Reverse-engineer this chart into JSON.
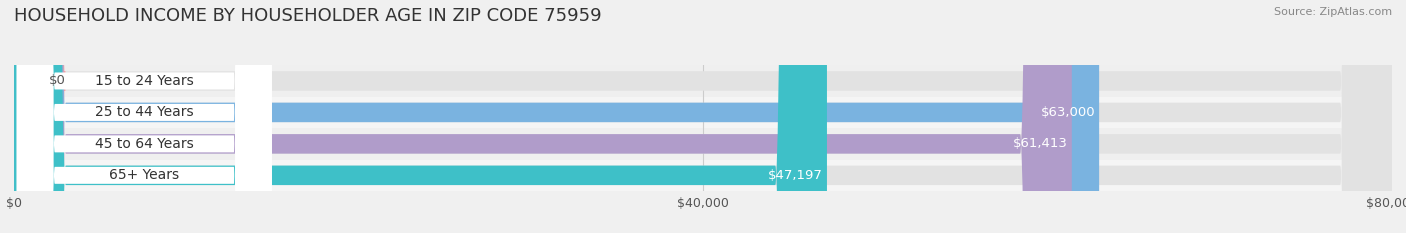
{
  "title": "HOUSEHOLD INCOME BY HOUSEHOLDER AGE IN ZIP CODE 75959",
  "source": "Source: ZipAtlas.com",
  "categories": [
    "15 to 24 Years",
    "25 to 44 Years",
    "45 to 64 Years",
    "65+ Years"
  ],
  "values": [
    0,
    63000,
    61413,
    47197
  ],
  "value_labels": [
    "$0",
    "$63,000",
    "$61,413",
    "$47,197"
  ],
  "bar_colors": [
    "#f0a0a8",
    "#7ab3e0",
    "#b09cca",
    "#3ec0c8"
  ],
  "background_color": "#f0f0f0",
  "bar_bg_color": "#e2e2e2",
  "label_bg_color": "#ffffff",
  "xlim": [
    0,
    80000
  ],
  "xticks": [
    0,
    40000,
    80000
  ],
  "xticklabels": [
    "$0",
    "$40,000",
    "$80,000"
  ],
  "title_fontsize": 13,
  "source_fontsize": 8,
  "bar_height": 0.62,
  "cat_label_fontsize": 10,
  "value_label_fontsize": 9.5,
  "tick_fontsize": 9
}
